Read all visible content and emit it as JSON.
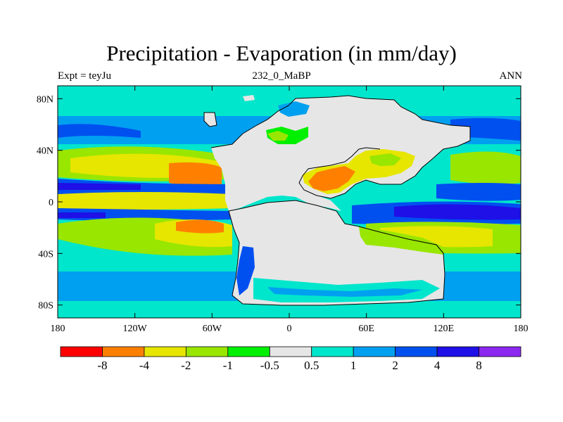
{
  "title": "Precipitation - Evaporation (in mm/day)",
  "subtitle": {
    "left": "Expt = teyJu",
    "center": "232_0_MaBP",
    "right": "ANN"
  },
  "axes": {
    "lat_labels": [
      "80N",
      "40N",
      "0",
      "40S",
      "80S"
    ],
    "lat_values": [
      80,
      40,
      0,
      -40,
      -80
    ],
    "lon_labels": [
      "180",
      "120W",
      "60W",
      "0",
      "60E",
      "120E",
      "180"
    ],
    "lon_values": [
      -180,
      -120,
      -60,
      0,
      60,
      120,
      180
    ]
  },
  "colorbar": {
    "colors": [
      "#ff0000",
      "#ff8000",
      "#e6e600",
      "#99e600",
      "#00f000",
      "#e6e6e6",
      "#00e6cc",
      "#00a0f0",
      "#0050f0",
      "#1e10e6",
      "#8c28f0"
    ],
    "labels": [
      "-8",
      "-4",
      "-2",
      "-1",
      "-0.5",
      "0.5",
      "1",
      "2",
      "4",
      "8"
    ]
  },
  "palette": {
    "land": "#e6e6e6",
    "coast": "#000000"
  }
}
